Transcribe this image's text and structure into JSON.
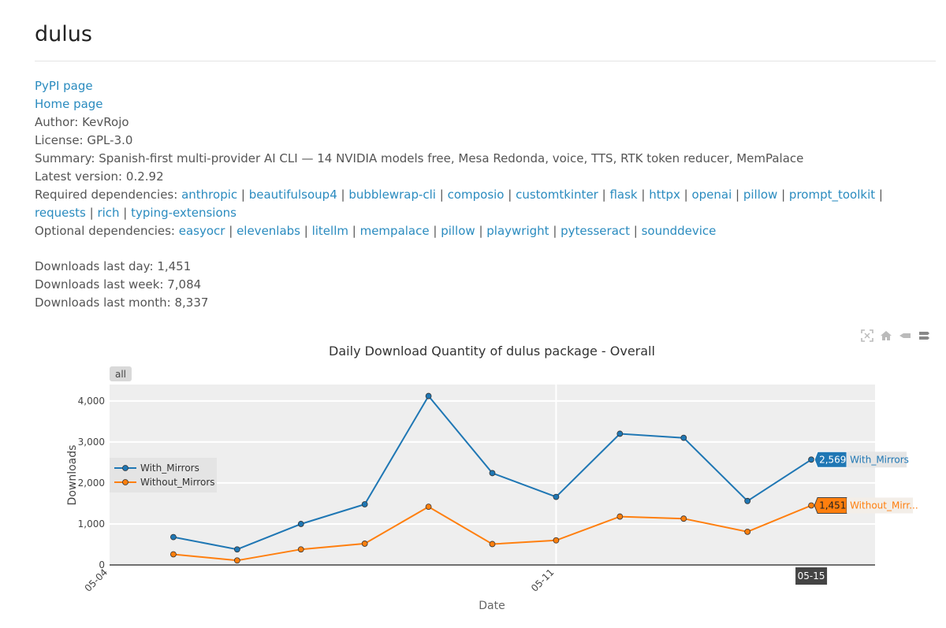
{
  "package": {
    "name": "dulus",
    "pypi_label": "PyPI page",
    "home_label": "Home page",
    "author_label": "Author:",
    "author": "KevRojo",
    "license_label": "License:",
    "license": "GPL-3.0",
    "summary_label": "Summary:",
    "summary": "Spanish-first multi-provider AI CLI — 14 NVIDIA models free, Mesa Redonda, voice, TTS, RTK token reducer, MemPalace",
    "version_label": "Latest version:",
    "version": "0.2.92",
    "required_label": "Required dependencies:",
    "required": [
      "anthropic",
      "beautifulsoup4",
      "bubblewrap-cli",
      "composio",
      "customtkinter",
      "flask",
      "httpx",
      "openai",
      "pillow",
      "prompt_toolkit",
      "requests",
      "rich",
      "typing-extensions"
    ],
    "optional_label": "Optional dependencies:",
    "optional": [
      "easyocr",
      "elevenlabs",
      "litellm",
      "mempalace",
      "pillow",
      "playwright",
      "pytesseract",
      "sounddevice"
    ]
  },
  "downloads": {
    "day_label": "Downloads last day:",
    "day": "1,451",
    "week_label": "Downloads last week:",
    "week": "7,084",
    "month_label": "Downloads last month:",
    "month": "8,337"
  },
  "toolbar": {
    "icons": [
      "autoscale-icon",
      "home-icon",
      "spike-icon",
      "compare-icon"
    ]
  },
  "chart_data": {
    "type": "line",
    "title": "Daily Download Quantity of dulus package - Overall",
    "range_button": "all",
    "xlabel": "Date",
    "ylabel": "Downloads",
    "x_tick_labels": [
      "05-04",
      "05-11"
    ],
    "x_hover_label": "05-15",
    "xlim": [
      "05-04",
      "05-16"
    ],
    "ylim": [
      0,
      4400
    ],
    "y_ticks": [
      0,
      1000,
      2000,
      3000,
      4000
    ],
    "y_tick_labels": [
      "0",
      "1,000",
      "2,000",
      "3,000",
      "4,000"
    ],
    "x": [
      "05-05",
      "05-06",
      "05-07",
      "05-08",
      "05-09",
      "05-10",
      "05-11",
      "05-12",
      "05-13",
      "05-14",
      "05-15"
    ],
    "series": [
      {
        "name": "With_Mirrors",
        "color": "#1f77b4",
        "values": [
          680,
          380,
          1000,
          1480,
          4120,
          2240,
          1660,
          3200,
          3100,
          1560,
          2569
        ],
        "hover_label": "2,569",
        "hover_name": "With_Mirrors"
      },
      {
        "name": "Without_Mirrors",
        "color": "#ff7f0e",
        "values": [
          260,
          110,
          380,
          520,
          1420,
          510,
          600,
          1180,
          1130,
          810,
          1451
        ],
        "hover_label": "1,451",
        "hover_name": "Without_Mirr..."
      }
    ],
    "legend_position": "left-middle",
    "grid": true
  }
}
